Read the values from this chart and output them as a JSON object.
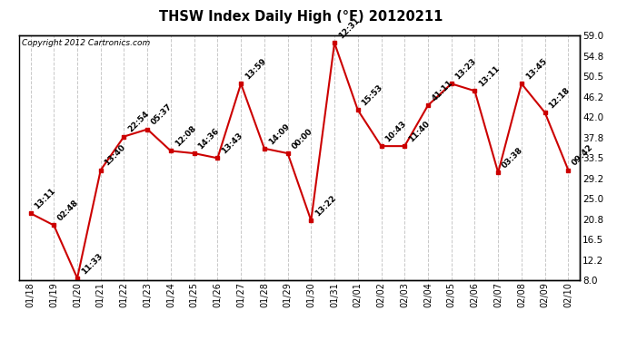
{
  "title": "THSW Index Daily High (°F) 20120211",
  "copyright": "Copyright 2012 Cartronics.com",
  "x_labels": [
    "01/18",
    "01/19",
    "01/20",
    "01/21",
    "01/22",
    "01/23",
    "01/24",
    "01/25",
    "01/26",
    "01/27",
    "01/28",
    "01/29",
    "01/30",
    "01/31",
    "02/01",
    "02/02",
    "02/03",
    "02/04",
    "02/05",
    "02/06",
    "02/07",
    "02/08",
    "02/09",
    "02/10"
  ],
  "y_values": [
    22.0,
    19.5,
    8.5,
    31.0,
    38.0,
    39.5,
    35.0,
    34.5,
    33.5,
    49.0,
    35.5,
    34.5,
    20.5,
    57.5,
    43.5,
    36.0,
    36.0,
    44.5,
    49.0,
    47.5,
    30.5,
    49.0,
    43.0,
    31.0
  ],
  "time_labels": [
    "13:11",
    "02:48",
    "11:33",
    "13:40",
    "22:54",
    "05:37",
    "12:08",
    "14:36",
    "13:43",
    "13:59",
    "14:09",
    "00:00",
    "13:22",
    "12:31",
    "15:53",
    "10:43",
    "11:40",
    "41:11",
    "13:23",
    "13:11",
    "03:38",
    "13:45",
    "12:18",
    "09:42"
  ],
  "ylim_min": 8.0,
  "ylim_max": 59.0,
  "yticks": [
    8.0,
    12.2,
    16.5,
    20.8,
    25.0,
    29.2,
    33.5,
    37.8,
    42.0,
    46.2,
    50.5,
    54.8,
    59.0
  ],
  "line_color": "#cc0000",
  "marker": "s",
  "marker_size": 3,
  "bg_color": "#ffffff",
  "grid_color": "#c8c8c8",
  "label_fontsize": 6.5,
  "title_fontsize": 10.5,
  "copyright_fontsize": 6.5
}
